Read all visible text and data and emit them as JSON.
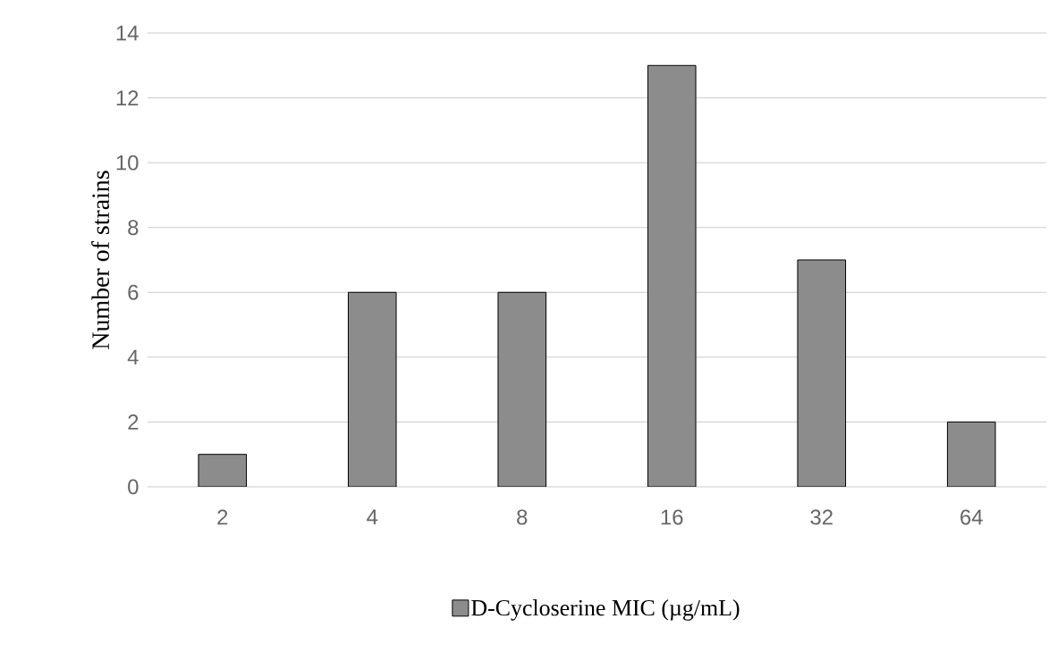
{
  "chart_data": {
    "type": "bar",
    "ylabel": "Number of strains",
    "categories": [
      "2",
      "4",
      "8",
      "16",
      "32",
      "64"
    ],
    "series": [
      {
        "name": "D-Cycloserine MIC (µg/mL)",
        "color": "#8c8c8c",
        "values": [
          1,
          6,
          6,
          13,
          7,
          2
        ]
      }
    ],
    "ylim": [
      0,
      14
    ],
    "yticks": [
      0,
      2,
      4,
      6,
      8,
      10,
      12,
      14
    ],
    "grid": "y",
    "legend": "bottom"
  }
}
